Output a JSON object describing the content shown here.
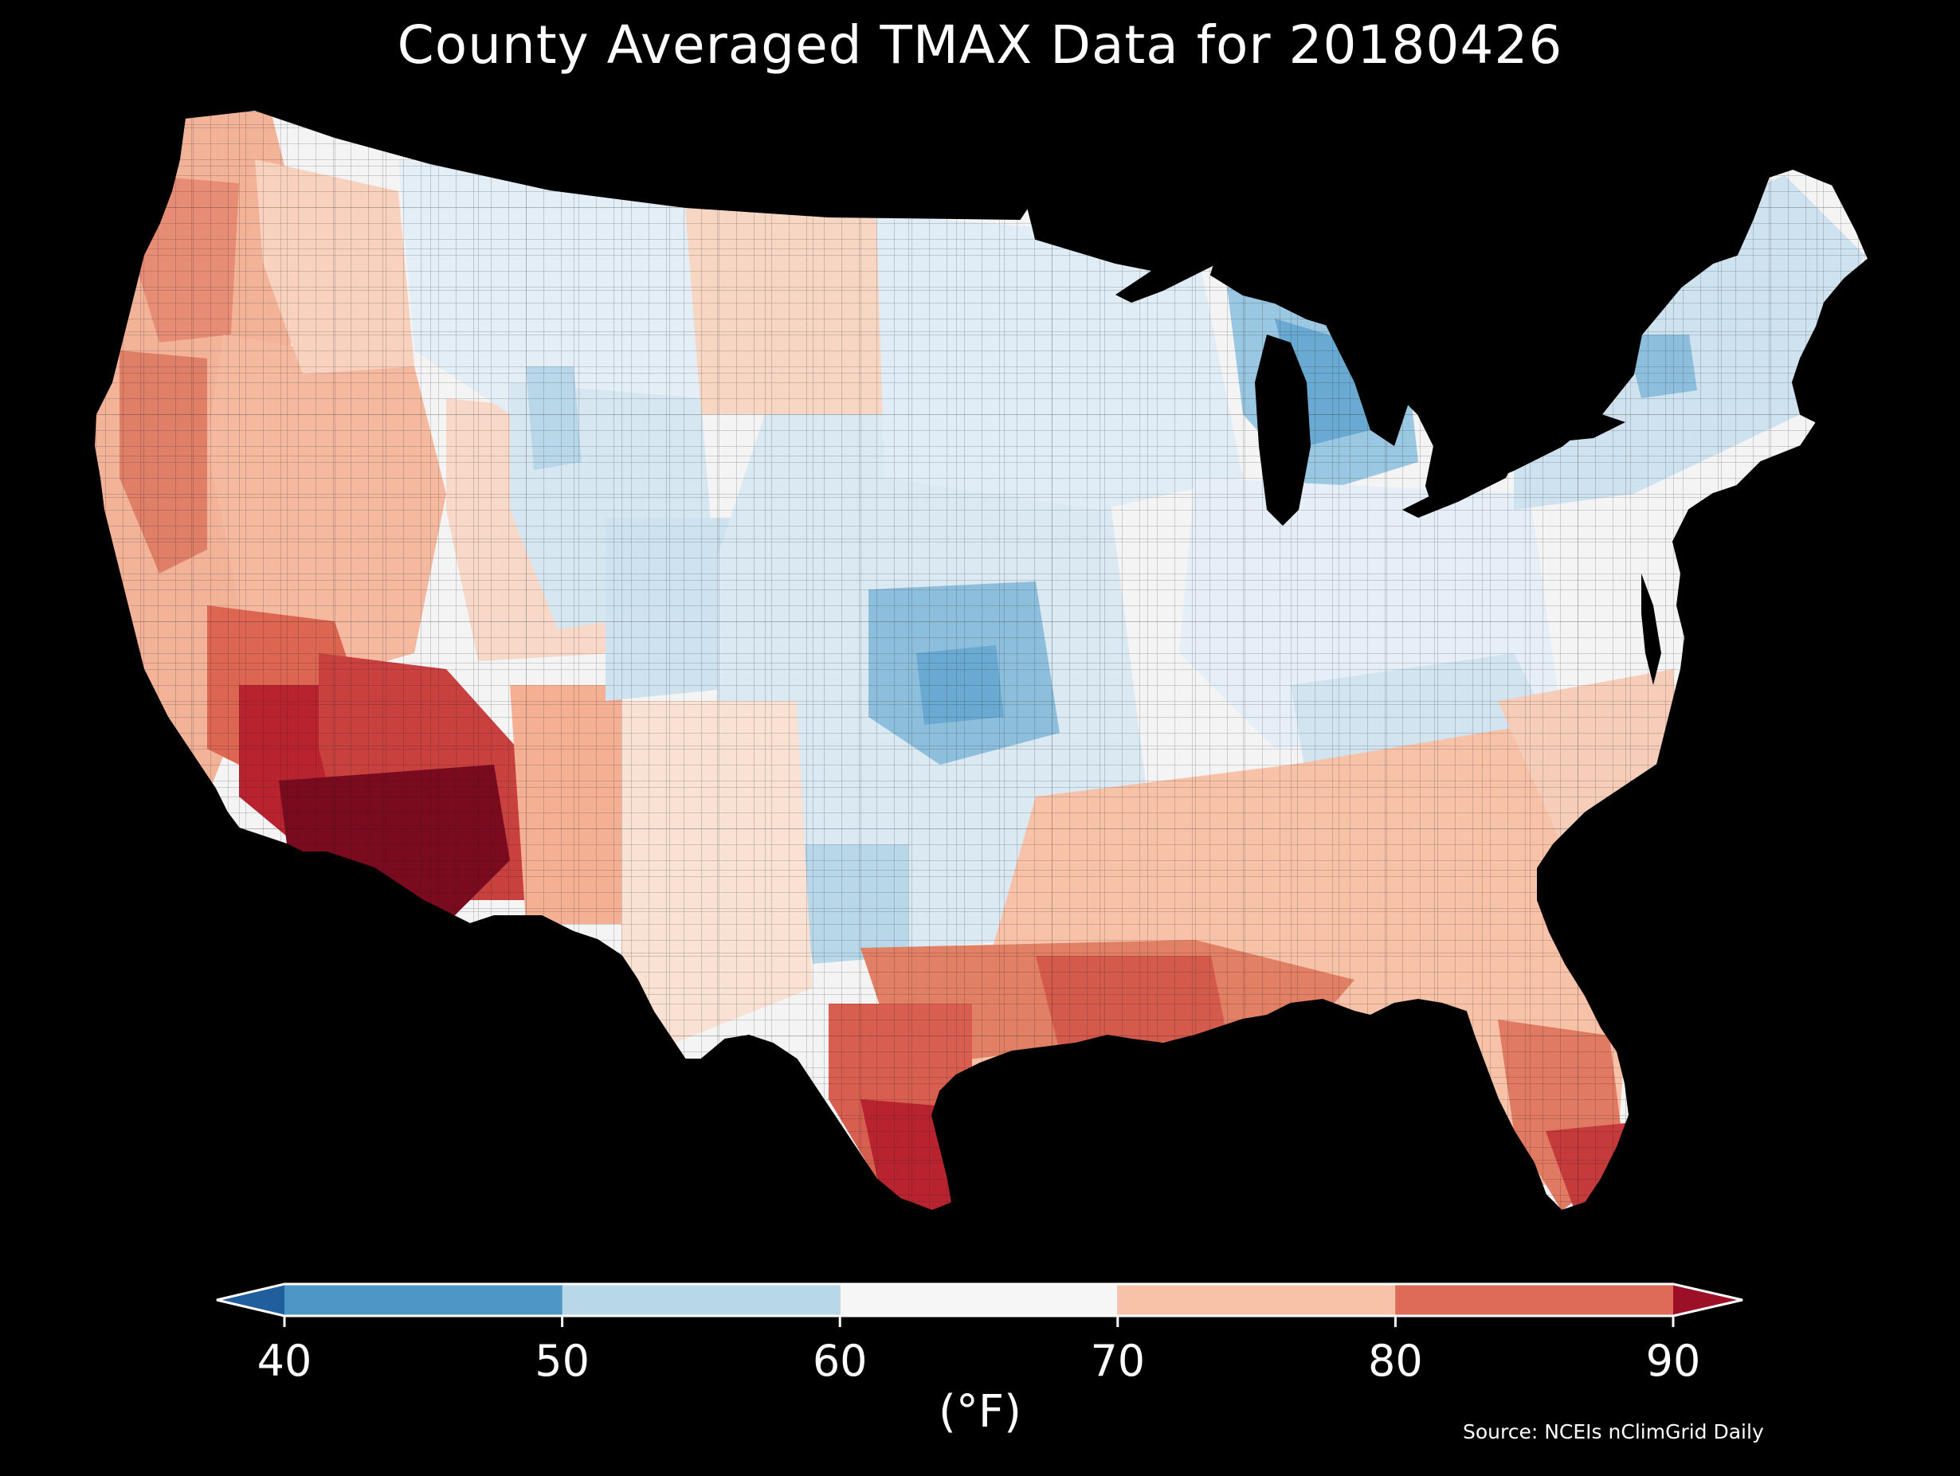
{
  "title": "County Averaged TMAX Data for 20180426",
  "source": "Source: NCEIs nClimGrid Daily",
  "colorbar": {
    "unit_label": "(°F)",
    "ticks": [
      "40",
      "50",
      "60",
      "70",
      "80",
      "90"
    ],
    "tick_values": [
      40,
      50,
      60,
      70,
      80,
      90
    ],
    "bins": [
      {
        "from": 40,
        "to": 50,
        "color": "#4d97c7"
      },
      {
        "from": 50,
        "to": 60,
        "color": "#b8d8ea"
      },
      {
        "from": 60,
        "to": 70,
        "color": "#f6f6f6"
      },
      {
        "from": 70,
        "to": 80,
        "color": "#f8c2a8"
      },
      {
        "from": 80,
        "to": 90,
        "color": "#de6b57"
      }
    ],
    "under_color": "#215e9e",
    "over_color": "#9b1027",
    "extend": "both"
  },
  "map": {
    "region": "contiguous-united-states",
    "level": "county",
    "background": "#000000",
    "border_color": "#000000",
    "color_scale": {
      "very-cold": "#2f74b2",
      "cold": "#4d97c7",
      "cool": "#b8d8ea",
      "mild": "#dbe9f3",
      "neutral": "#f6f6f6",
      "warm": "#f8c2a8",
      "hot": "#de6b57",
      "very-hot": "#b8232f",
      "extreme": "#7a0b1f"
    }
  }
}
